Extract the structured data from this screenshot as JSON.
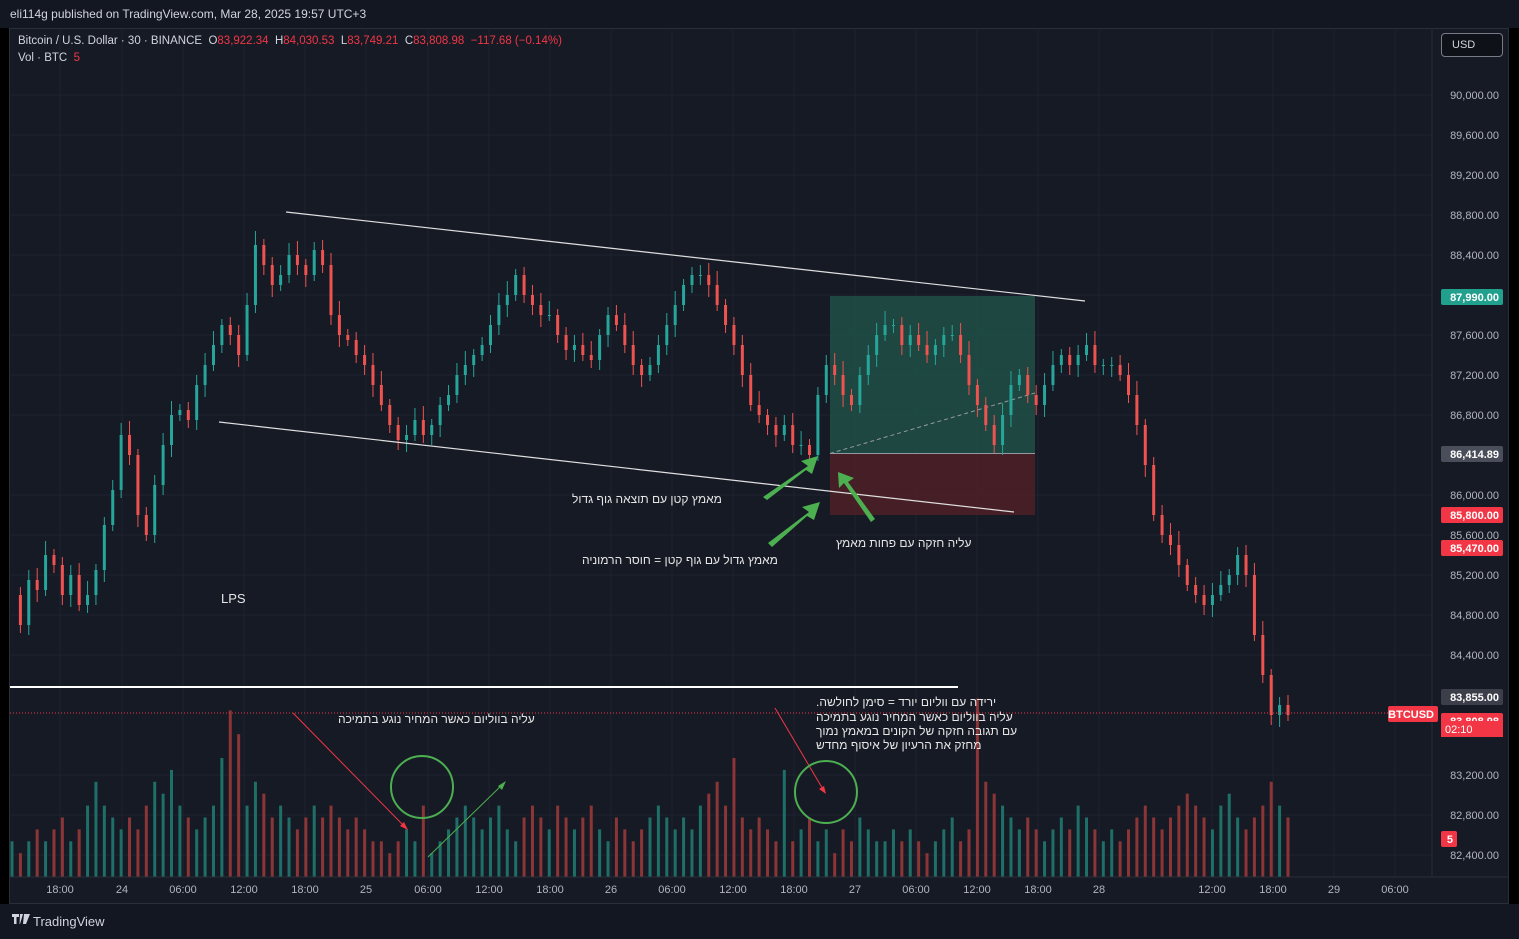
{
  "header": {
    "published": "eli114g published on TradingView.com, Mar 28, 2025 19:57 UTC+3"
  },
  "legend": {
    "symbol": "Bitcoin / U.S. Dollar · 30 · BINANCE",
    "o_label": "O",
    "o": "83,922.34",
    "h_label": "H",
    "h": "84,030.53",
    "l_label": "L",
    "l": "83,749.21",
    "c_label": "C",
    "c": "83,808.98",
    "change": "−117.68 (−0.14%)",
    "vol_label": "Vol · BTC",
    "vol": "5"
  },
  "currency_button": "USD",
  "annotations": {
    "lps": "LPS",
    "small_effort_big_body": "מאמץ קטן עם תוצאה גוף גדול",
    "big_effort_small_body": "מאמץ גדול עם גוף קטן = חוסר הרמוניה",
    "strong_rise_less_effort": "עליה חזקה עם פחות מאמץ",
    "rise_volume_support": "עליה בווליום כאשר המחיר נוגע בתמיכה",
    "note_line1": "ירידה עם ווליום יורד = סימן לחולשה.",
    "note_line2": "עליה בווליום כאשר המחיר נוגע בתמיכה",
    "note_line3": "עם תגובה חזקה של הקונים במאמץ נמוך",
    "note_line4": "מחזק את הרעיון של איסוף מחדש"
  },
  "price_labels": {
    "target": "87,990.00",
    "entry": "86,414.89",
    "stop": "85,800.00",
    "other": "85,470.00",
    "high_line": "83,855.00",
    "last": "83,808.98",
    "countdown": "02:10",
    "symbol_tag": "BTCUSD",
    "volume_tag": "5"
  },
  "footer": {
    "brand": "TradingView"
  },
  "colors": {
    "up": "#26a69a",
    "down": "#ef5350",
    "background": "#161a25",
    "grid": "#1f2330",
    "long_target": "#1f4d45",
    "long_stop": "#4a2026"
  },
  "chart_data": {
    "type": "candlestick",
    "symbol": "BTCUSD",
    "timeframe": "30",
    "y_axis_ticks": [
      "90,000.00",
      "89,600.00",
      "89,200.00",
      "88,800.00",
      "88,400.00",
      "88,000.00",
      "87,600.00",
      "87,200.00",
      "86,800.00",
      "86,000.00",
      "85,600.00",
      "85,200.00",
      "84,800.00",
      "84,400.00",
      "83,200.00",
      "82,800.00",
      "82,400.00"
    ],
    "x_axis_ticks": [
      "18:00",
      "24",
      "06:00",
      "12:00",
      "18:00",
      "25",
      "06:00",
      "12:00",
      "18:00",
      "26",
      "06:00",
      "12:00",
      "18:00",
      "27",
      "06:00",
      "12:00",
      "18:00",
      "28",
      "12:00",
      "18:00",
      "29",
      "06:00"
    ],
    "ylim": [
      82300,
      90300
    ],
    "price_path": [
      85000,
      84700,
      85150,
      85050,
      85400,
      85300,
      85000,
      85200,
      84900,
      85000,
      85250,
      85700,
      86050,
      86600,
      86400,
      85800,
      85600,
      86100,
      86500,
      86800,
      86850,
      86750,
      87100,
      87300,
      87500,
      87700,
      87600,
      87400,
      87900,
      88500,
      88300,
      88100,
      88200,
      88400,
      88300,
      88200,
      88450,
      88300,
      87800,
      87600,
      87550,
      87400,
      87300,
      87100,
      86900,
      86700,
      86550,
      86600,
      86750,
      86600,
      86700,
      86900,
      87000,
      87200,
      87300,
      87400,
      87500,
      87700,
      87900,
      88000,
      88200,
      88000,
      87900,
      87800,
      87800,
      87600,
      87450,
      87500,
      87400,
      87350,
      87600,
      87800,
      87700,
      87500,
      87300,
      87200,
      87300,
      87500,
      87700,
      87900,
      88100,
      88200,
      88200,
      88100,
      87900,
      87700,
      87500,
      87200,
      86900,
      86800,
      86700,
      86600,
      86700,
      86500,
      86500,
      86400,
      87000,
      87300,
      87200,
      87000,
      86900,
      87200,
      87400,
      87600,
      87700,
      87700,
      87500,
      87600,
      87500,
      87400,
      87500,
      87600,
      87600,
      87400,
      87100,
      86900,
      86700,
      86500,
      86800,
      87100,
      87200,
      87000,
      86900,
      87100,
      87300,
      87400,
      87300,
      87400,
      87500,
      87300,
      87300,
      87300,
      87200,
      87000,
      86700,
      86300,
      85800,
      85600,
      85500,
      85300,
      85100,
      85000,
      84900,
      85000,
      85100,
      85200,
      85400,
      85200,
      84600,
      84200,
      83800,
      83900,
      83800
    ],
    "volume_profile": [
      3,
      2,
      3,
      4,
      3,
      4,
      5,
      3,
      4,
      6,
      8,
      6,
      5,
      4,
      5,
      4,
      6,
      8,
      7,
      9,
      6,
      5,
      4,
      5,
      6,
      10,
      14,
      12,
      6,
      8,
      7,
      5,
      6,
      5,
      4,
      5,
      6,
      5,
      6,
      5,
      4,
      5,
      4,
      3,
      3,
      2,
      3,
      4,
      3,
      6,
      2,
      3,
      4,
      5,
      6,
      5,
      4,
      5,
      6,
      4,
      3,
      5,
      6,
      5,
      4,
      6,
      5,
      4,
      5,
      6,
      4,
      3,
      5,
      4,
      3,
      4,
      5,
      6,
      5,
      4,
      5,
      4,
      6,
      7,
      8,
      6,
      10,
      5,
      4,
      5,
      4,
      3,
      9,
      3,
      4,
      5,
      3,
      4,
      2,
      4,
      3,
      5,
      4,
      3,
      3,
      4,
      3,
      4,
      3,
      2,
      3,
      4,
      5,
      3,
      4,
      15,
      8,
      7,
      6,
      5,
      4,
      5,
      4,
      3,
      4,
      5,
      4,
      6,
      5,
      4,
      3,
      4,
      3,
      4,
      5,
      6,
      5,
      4,
      5,
      6,
      7,
      6,
      5,
      4,
      6,
      7,
      5,
      4,
      5,
      6,
      8,
      6,
      5,
      4,
      7,
      8,
      6,
      5,
      4,
      6,
      7,
      5,
      8,
      9,
      7,
      6,
      5,
      4,
      3,
      4,
      5,
      6,
      5,
      4,
      3
    ],
    "long_position": {
      "entry": 86414.89,
      "target": 87990.0,
      "stop": 85800.0
    },
    "horizontal_lines": [
      83855.0
    ],
    "channel": {
      "upper": [
        [
          88840,
          "23 17:00"
        ],
        [
          87990,
          "28 02:00"
        ]
      ],
      "lower": [
        [
          86760,
          "24 09:00"
        ],
        [
          85840,
          "27 13:00"
        ]
      ]
    }
  }
}
